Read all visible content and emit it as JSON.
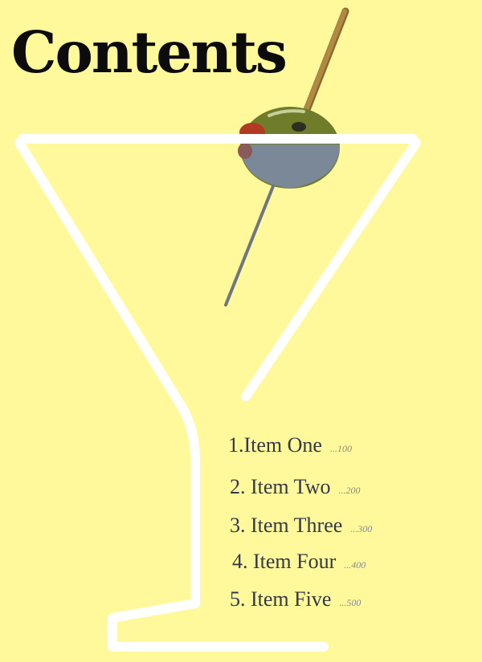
{
  "page": {
    "title": "Contents",
    "background": "#fff99b"
  },
  "illustration": {
    "subject": "martini glass with olive on toothpick",
    "glass_color": "#ffffff",
    "olive_color": "#7b8897",
    "olive_top_color": "#6f7d2a",
    "pimento_color": "#b33a22",
    "pick_color": "#b08a43"
  },
  "toc": {
    "items": [
      {
        "label": "1.Item One",
        "page": "...100"
      },
      {
        "label": "2. Item Two",
        "page": "...200"
      },
      {
        "label": "3. Item Three",
        "page": "...300"
      },
      {
        "label": "4. Item Four",
        "page": "...400"
      },
      {
        "label": "5. Item Five",
        "page": "...500"
      }
    ]
  }
}
